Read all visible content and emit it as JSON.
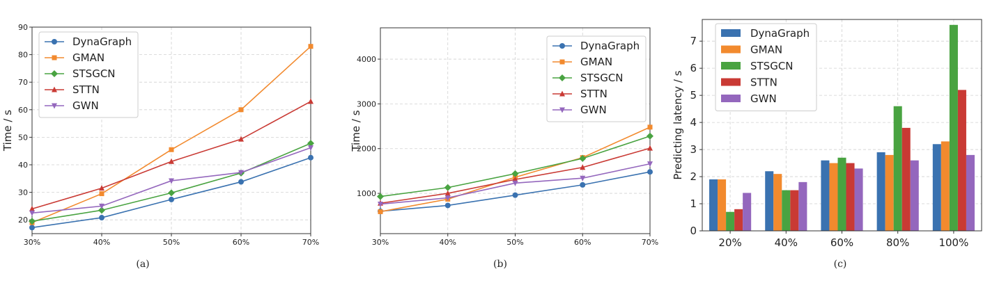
{
  "colors": {
    "DynaGraph": "#3a72b0",
    "GMAN": "#f28a2e",
    "STSGCN": "#49a341",
    "STTN": "#c93a34",
    "GWN": "#9467bd"
  },
  "captions": [
    "(a)",
    "(b)",
    "(c)"
  ],
  "chart_data": [
    {
      "type": "line",
      "caption": "(a)",
      "categories": [
        "30%",
        "40%",
        "50%",
        "60%",
        "70%"
      ],
      "ylabel": "Time / s",
      "ylim": [
        15,
        90
      ],
      "yticks": [
        20,
        30,
        40,
        50,
        60,
        70,
        80,
        90
      ],
      "legend": "top-left",
      "grid": true,
      "series": [
        {
          "name": "DynaGraph",
          "marker": "circle",
          "values": [
            17.2,
            20.8,
            27.4,
            33.8,
            42.6
          ]
        },
        {
          "name": "GMAN",
          "marker": "square",
          "values": [
            19.0,
            29.5,
            45.5,
            60.0,
            83.0
          ]
        },
        {
          "name": "STSGCN",
          "marker": "diamond",
          "values": [
            19.5,
            23.5,
            29.8,
            37.0,
            47.8
          ]
        },
        {
          "name": "STTN",
          "marker": "triangle-up",
          "values": [
            24.0,
            31.5,
            41.2,
            49.3,
            63.0
          ]
        },
        {
          "name": "GWN",
          "marker": "triangle-down",
          "values": [
            22.5,
            25.0,
            34.2,
            37.2,
            46.2
          ]
        }
      ]
    },
    {
      "type": "line",
      "caption": "(b)",
      "categories": [
        "30%",
        "40%",
        "50%",
        "60%",
        "70%"
      ],
      "ylabel": "Time / s",
      "ylim": [
        100,
        4700
      ],
      "yticks": [
        1000,
        2000,
        3000,
        4000
      ],
      "legend": "top-right",
      "grid": true,
      "series": [
        {
          "name": "DynaGraph",
          "marker": "circle",
          "values": [
            600,
            730,
            960,
            1190,
            1480
          ]
        },
        {
          "name": "GMAN",
          "marker": "square",
          "values": [
            590,
            870,
            1360,
            1800,
            2480
          ]
        },
        {
          "name": "STSGCN",
          "marker": "diamond",
          "values": [
            930,
            1130,
            1440,
            1780,
            2280
          ]
        },
        {
          "name": "STTN",
          "marker": "triangle-up",
          "values": [
            780,
            1000,
            1310,
            1580,
            2010
          ]
        },
        {
          "name": "GWN",
          "marker": "triangle-down",
          "values": [
            760,
            900,
            1230,
            1340,
            1660
          ]
        }
      ]
    },
    {
      "type": "bar",
      "caption": "(c)",
      "categories": [
        "20%",
        "40%",
        "60%",
        "80%",
        "100%"
      ],
      "ylabel": "Predicting latency / s",
      "ylim": [
        0,
        7.8
      ],
      "yticks": [
        0,
        1,
        2,
        3,
        4,
        5,
        6,
        7
      ],
      "legend": "top-left",
      "grid": true,
      "series": [
        {
          "name": "DynaGraph",
          "values": [
            1.9,
            2.2,
            2.6,
            2.9,
            3.2
          ]
        },
        {
          "name": "GMAN",
          "values": [
            1.9,
            2.1,
            2.5,
            2.8,
            3.3
          ]
        },
        {
          "name": "STSGCN",
          "values": [
            0.7,
            1.5,
            2.7,
            4.6,
            7.6
          ]
        },
        {
          "name": "STTN",
          "values": [
            0.8,
            1.5,
            2.5,
            3.8,
            5.2
          ]
        },
        {
          "name": "GWN",
          "values": [
            1.4,
            1.8,
            2.3,
            2.6,
            2.8
          ]
        }
      ]
    }
  ]
}
